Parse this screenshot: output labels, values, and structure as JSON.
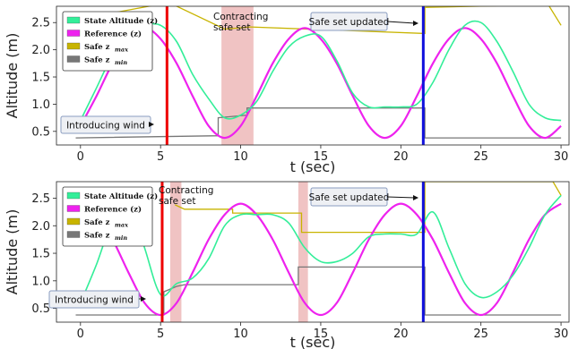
{
  "chart_data": [
    {
      "type": "line",
      "xlabel": "t (sec)",
      "ylabel": "Altitude (m)",
      "xlim": [
        -1.5,
        30.5
      ],
      "ylim": [
        0.25,
        2.8
      ],
      "xticks": [
        0,
        5,
        10,
        15,
        20,
        25,
        30
      ],
      "yticks": [
        0.5,
        1.0,
        1.5,
        2.0,
        2.5
      ],
      "legend": {
        "placement": "top-left",
        "entries": [
          {
            "label": "State Altitude (z)",
            "sub": "",
            "color": "#33ee99"
          },
          {
            "label": "Reference (z)",
            "sub": "",
            "color": "#ee22ee"
          },
          {
            "label": "Safe z",
            "sub": "max",
            "color": "#c8b400"
          },
          {
            "label": "Safe z",
            "sub": "min",
            "color": "#777777"
          }
        ]
      },
      "series": [
        {
          "name": "State Altitude (z)",
          "color": "#33ee99",
          "x": [
            0,
            1,
            2,
            3,
            4,
            5,
            6,
            7,
            8,
            9,
            10,
            11,
            12,
            13,
            14,
            15,
            16,
            17,
            18,
            19,
            20,
            21,
            22,
            23,
            24,
            25,
            26,
            27,
            28,
            29,
            30
          ],
          "y": [
            0.7,
            1.3,
            1.9,
            2.3,
            2.45,
            2.45,
            2.15,
            1.55,
            1.1,
            0.75,
            0.8,
            1.05,
            1.6,
            2.05,
            2.25,
            2.25,
            1.8,
            1.2,
            0.95,
            0.95,
            0.95,
            1.0,
            1.4,
            2.0,
            2.45,
            2.5,
            2.15,
            1.6,
            1.0,
            0.75,
            0.7
          ]
        },
        {
          "name": "Reference (z)",
          "color": "#ee22ee",
          "x": [
            0,
            1,
            2,
            3,
            4,
            5,
            6,
            7,
            8,
            9,
            10,
            11,
            12,
            13,
            14,
            15,
            16,
            17,
            18,
            19,
            20,
            21,
            22,
            23,
            24,
            25,
            26,
            27,
            28,
            29,
            30
          ],
          "y": [
            0.6,
            1.15,
            1.75,
            2.2,
            2.4,
            2.2,
            1.75,
            1.15,
            0.6,
            0.38,
            0.6,
            1.15,
            1.75,
            2.2,
            2.4,
            2.2,
            1.75,
            1.15,
            0.6,
            0.38,
            0.6,
            1.15,
            1.75,
            2.2,
            2.4,
            2.2,
            1.75,
            1.15,
            0.6,
            0.38,
            0.6
          ]
        }
      ],
      "safe_max": [
        [
          -0.3,
          2.55
        ],
        [
          4.8,
          2.83
        ],
        [
          5.8,
          2.83
        ],
        [
          9.0,
          2.38
        ],
        [
          10.6,
          2.42
        ],
        [
          21.5,
          2.3
        ],
        [
          21.5,
          2.78
        ],
        [
          29.2,
          2.83
        ],
        [
          30.0,
          2.45
        ]
      ],
      "safe_min": [
        [
          -0.3,
          0.38
        ],
        [
          8.6,
          0.42
        ],
        [
          8.6,
          0.75
        ],
        [
          10.4,
          0.8
        ],
        [
          10.4,
          0.93
        ],
        [
          21.5,
          0.93
        ],
        [
          21.5,
          0.38
        ],
        [
          30.0,
          0.38
        ]
      ],
      "shaded_regions": [
        [
          8.8,
          10.8
        ]
      ],
      "event_lines": [
        {
          "x": 5.4,
          "color": "#ee0000"
        },
        {
          "x": 21.4,
          "color": "#1010dd"
        }
      ],
      "annotations": [
        {
          "lines": [
            "Contracting",
            "safe set"
          ],
          "boxed": false
        },
        {
          "lines": [
            "Safe set updated"
          ],
          "boxed": true
        },
        {
          "lines": [
            "Introducing wind"
          ],
          "boxed": true
        }
      ]
    },
    {
      "type": "line",
      "xlabel": "t (sec)",
      "ylabel": "Altitude (m)",
      "xlim": [
        -1.5,
        30.5
      ],
      "ylim": [
        0.25,
        2.8
      ],
      "xticks": [
        0,
        5,
        10,
        15,
        20,
        25,
        30
      ],
      "yticks": [
        0.5,
        1.0,
        1.5,
        2.0,
        2.5
      ],
      "legend": {
        "placement": "top-left",
        "entries": [
          {
            "label": "State Altitude (z)",
            "sub": "",
            "color": "#33ee99"
          },
          {
            "label": "Reference (z)",
            "sub": "",
            "color": "#ee22ee"
          },
          {
            "label": "Safe z",
            "sub": "max",
            "color": "#c8b400"
          },
          {
            "label": "Safe z",
            "sub": "min",
            "color": "#777777"
          }
        ]
      },
      "series": [
        {
          "name": "State Altitude (z)",
          "color": "#33ee99",
          "x": [
            0,
            1,
            2,
            3,
            4,
            5,
            6,
            7,
            8,
            9,
            10,
            11,
            12,
            13,
            14,
            15,
            16,
            17,
            18,
            19,
            20,
            21,
            22,
            23,
            24,
            25,
            26,
            27,
            28,
            29,
            30
          ],
          "y": [
            0.6,
            1.3,
            2.1,
            2.5,
            1.6,
            0.75,
            0.95,
            1.05,
            1.4,
            2.0,
            2.2,
            2.2,
            2.2,
            2.05,
            1.6,
            1.35,
            1.35,
            1.5,
            1.8,
            1.85,
            1.85,
            1.85,
            2.25,
            1.6,
            0.95,
            0.7,
            0.8,
            1.1,
            1.6,
            2.2,
            2.55
          ]
        },
        {
          "name": "Reference (z)",
          "color": "#ee22ee",
          "x": [
            0,
            1,
            2,
            3,
            4,
            5,
            6,
            7,
            8,
            9,
            10,
            11,
            12,
            13,
            14,
            15,
            16,
            17,
            18,
            19,
            20,
            21,
            22,
            23,
            24,
            25,
            26,
            27,
            28,
            29,
            30
          ],
          "y": [
            2.4,
            2.2,
            1.75,
            1.15,
            0.6,
            0.38,
            0.6,
            1.15,
            1.75,
            2.2,
            2.4,
            2.2,
            1.75,
            1.15,
            0.6,
            0.38,
            0.6,
            1.15,
            1.75,
            2.2,
            2.4,
            2.2,
            1.75,
            1.15,
            0.6,
            0.38,
            0.6,
            1.15,
            1.75,
            2.2,
            2.4
          ]
        }
      ],
      "safe_max": [
        [
          5.9,
          2.38
        ],
        [
          6.5,
          2.3
        ],
        [
          9.5,
          2.3
        ],
        [
          9.5,
          2.23
        ],
        [
          13.8,
          2.23
        ],
        [
          13.8,
          1.88
        ],
        [
          21.5,
          1.88
        ],
        [
          21.5,
          2.8
        ],
        [
          29.5,
          2.8
        ],
        [
          30.0,
          2.55
        ]
      ],
      "safe_min": [
        [
          -0.3,
          0.38
        ],
        [
          5.2,
          0.38
        ],
        [
          5.2,
          0.8
        ],
        [
          6.0,
          0.9
        ],
        [
          6.5,
          0.93
        ],
        [
          13.6,
          0.93
        ],
        [
          13.6,
          1.25
        ],
        [
          21.5,
          1.25
        ],
        [
          21.5,
          0.38
        ],
        [
          30.0,
          0.38
        ]
      ],
      "shaded_regions": [
        [
          5.6,
          6.3
        ],
        [
          13.6,
          14.2
        ]
      ],
      "event_lines": [
        {
          "x": 5.1,
          "color": "#ee0000"
        },
        {
          "x": 21.4,
          "color": "#1010dd"
        }
      ],
      "annotations": [
        {
          "lines": [
            "Contracting",
            "safe set"
          ],
          "boxed": false
        },
        {
          "lines": [
            "Safe set updated"
          ],
          "boxed": true
        },
        {
          "lines": [
            "Introducing wind"
          ],
          "boxed": true
        }
      ]
    }
  ]
}
